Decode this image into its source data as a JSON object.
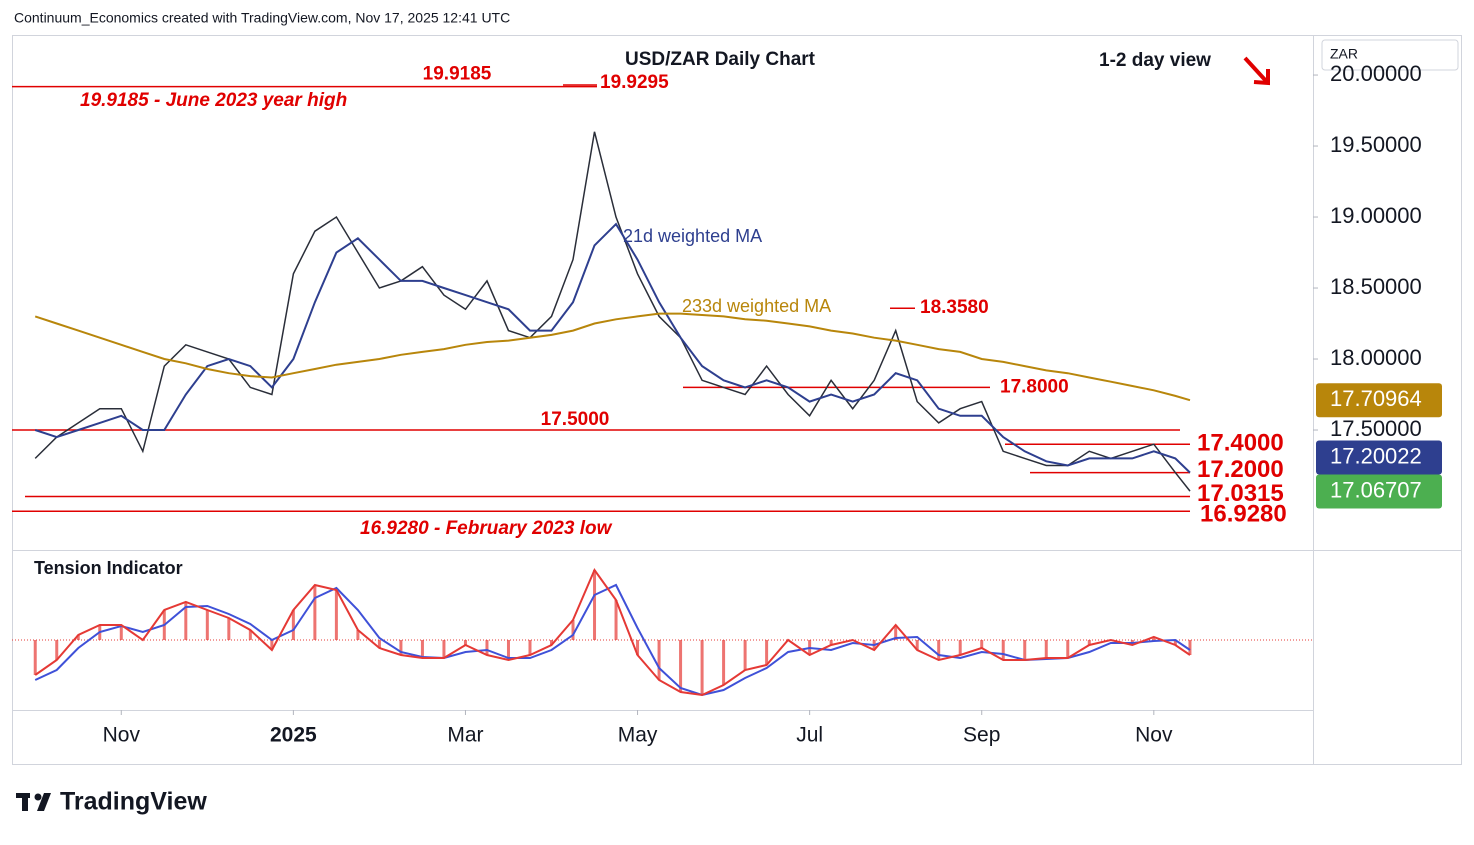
{
  "header": {
    "credit": "Continuum_Economics created with TradingView.com, Nov 17, 2025 12:41 UTC",
    "currency": "ZAR",
    "brand": "TradingView"
  },
  "chart_data": {
    "type": "line",
    "title": "USD/ZAR Daily Chart",
    "view": "1-2 day view",
    "x": [
      0,
      0.25,
      0.5,
      0.75,
      1,
      1.25,
      1.5,
      1.75,
      2,
      2.25,
      2.5,
      2.75,
      3,
      3.25,
      3.5,
      3.75,
      4,
      4.25,
      4.5,
      4.75,
      5,
      5.25,
      5.5,
      5.75,
      6,
      6.25,
      6.5,
      6.75,
      7,
      7.25,
      7.5,
      7.75,
      8,
      8.25,
      8.5,
      8.75,
      9,
      9.25,
      9.5,
      9.75,
      10,
      10.25,
      10.5,
      10.75,
      11,
      11.25,
      11.5,
      11.75,
      12,
      12.25,
      12.5,
      12.75,
      13,
      13.25,
      13.42
    ],
    "xlim": [
      -0.27,
      14.85
    ],
    "xticks": [
      {
        "value": 1,
        "label": "Nov"
      },
      {
        "value": 3,
        "label": "2025"
      },
      {
        "value": 5,
        "label": "Mar"
      },
      {
        "value": 7,
        "label": "May"
      },
      {
        "value": 9,
        "label": "Jul"
      },
      {
        "value": 11,
        "label": "Sep"
      },
      {
        "value": 13,
        "label": "Nov"
      }
    ],
    "ylim": [
      16.655,
      20.282
    ],
    "yticks": [
      {
        "value": 17.5,
        "label": "17.50000"
      },
      {
        "value": 18,
        "label": "18.00000"
      },
      {
        "value": 18.5,
        "label": "18.50000"
      },
      {
        "value": 19,
        "label": "19.00000"
      },
      {
        "value": 19.5,
        "label": "19.50000"
      },
      {
        "value": 20,
        "label": "20.00000"
      }
    ],
    "series": [
      {
        "color": "#2a2e39",
        "badge_color": "#4caf50",
        "last_value": 17.06707,
        "values": [
          17.3,
          17.45,
          17.55,
          17.65,
          17.65,
          17.35,
          17.95,
          18.1,
          18.05,
          18.0,
          17.8,
          17.75,
          18.6,
          18.9,
          19.0,
          18.75,
          18.5,
          18.55,
          18.65,
          18.45,
          18.35,
          18.55,
          18.2,
          18.15,
          18.3,
          18.7,
          19.6,
          19.0,
          18.6,
          18.3,
          18.15,
          17.85,
          17.8,
          17.75,
          17.95,
          17.75,
          17.6,
          17.85,
          17.65,
          17.85,
          18.2,
          17.7,
          17.55,
          17.65,
          17.7,
          17.35,
          17.3,
          17.25,
          17.25,
          17.35,
          17.3,
          17.35,
          17.4,
          17.2,
          17.07
        ]
      },
      {
        "name": "21d weighted MA",
        "color": "#2e3f8f",
        "badge_color": "#2e3f8f",
        "last_value": 17.20022,
        "values": [
          17.5,
          17.45,
          17.5,
          17.55,
          17.6,
          17.5,
          17.5,
          17.75,
          17.95,
          18.0,
          17.95,
          17.8,
          18.0,
          18.4,
          18.75,
          18.85,
          18.7,
          18.55,
          18.55,
          18.5,
          18.45,
          18.4,
          18.35,
          18.2,
          18.2,
          18.4,
          18.8,
          18.95,
          18.7,
          18.4,
          18.15,
          17.95,
          17.85,
          17.8,
          17.85,
          17.8,
          17.7,
          17.75,
          17.7,
          17.75,
          17.9,
          17.85,
          17.65,
          17.6,
          17.6,
          17.45,
          17.35,
          17.28,
          17.25,
          17.3,
          17.3,
          17.3,
          17.35,
          17.3,
          17.2
        ]
      },
      {
        "name": "233d weighted MA",
        "color": "#b8860b",
        "badge_color": "#b8860b",
        "last_value": 17.70964,
        "values": [
          18.3,
          18.25,
          18.2,
          18.15,
          18.1,
          18.05,
          18.0,
          17.97,
          17.93,
          17.9,
          17.88,
          17.87,
          17.9,
          17.93,
          17.96,
          17.98,
          18.0,
          18.03,
          18.05,
          18.07,
          18.1,
          18.12,
          18.13,
          18.15,
          18.17,
          18.2,
          18.25,
          18.28,
          18.3,
          18.32,
          18.32,
          18.31,
          18.3,
          18.28,
          18.27,
          18.25,
          18.23,
          18.2,
          18.18,
          18.15,
          18.13,
          18.1,
          18.07,
          18.05,
          18.0,
          17.98,
          17.95,
          17.92,
          17.9,
          17.87,
          17.84,
          17.81,
          17.78,
          17.74,
          17.71
        ]
      }
    ],
    "levels": [
      {
        "value": 19.9185,
        "label": "19.9185"
      },
      {
        "value": 19.9295,
        "label": "19.9295"
      },
      {
        "value": 18.358,
        "label": "18.3580"
      },
      {
        "value": 17.8,
        "label": "17.8000"
      },
      {
        "value": 17.5,
        "label": "17.5000"
      },
      {
        "value": 17.4,
        "label": "17.4000"
      },
      {
        "value": 17.2,
        "label": "17.2000"
      },
      {
        "value": 17.0315,
        "label": "17.0315"
      },
      {
        "value": 16.928,
        "label": "16.9280"
      }
    ],
    "level_color": "#e00000",
    "annotations": [
      "19.9185 - June 2023 year high",
      "16.9280 - February 2023 low"
    ],
    "indicator": {
      "title": "Tension Indicator",
      "ylim": [
        -70,
        85
      ],
      "series": [
        {
          "color": "#e53935",
          "values": [
            -35,
            -20,
            5,
            15,
            15,
            0,
            30,
            38,
            30,
            22,
            10,
            -10,
            30,
            55,
            50,
            10,
            -8,
            -15,
            -18,
            -18,
            -5,
            -15,
            -20,
            -15,
            -5,
            20,
            70,
            40,
            -15,
            -40,
            -52,
            -55,
            -45,
            -30,
            -25,
            0,
            -15,
            -5,
            0,
            -10,
            15,
            -10,
            -20,
            -15,
            -8,
            -20,
            -20,
            -18,
            -18,
            -5,
            0,
            -5,
            3,
            -5,
            -15
          ]
        },
        {
          "color": "#3f51d8",
          "values": [
            -40,
            -30,
            -8,
            8,
            14,
            8,
            15,
            33,
            34,
            26,
            16,
            0,
            10,
            42,
            52,
            30,
            2,
            -12,
            -17,
            -18,
            -12,
            -10,
            -18,
            -18,
            -10,
            5,
            45,
            55,
            12,
            -28,
            -48,
            -55,
            -50,
            -38,
            -28,
            -12,
            -8,
            -10,
            -3,
            -5,
            2,
            3,
            -15,
            -18,
            -12,
            -14,
            -20,
            -19,
            -18,
            -12,
            -3,
            -3,
            -1,
            0,
            -10
          ]
        }
      ]
    }
  }
}
